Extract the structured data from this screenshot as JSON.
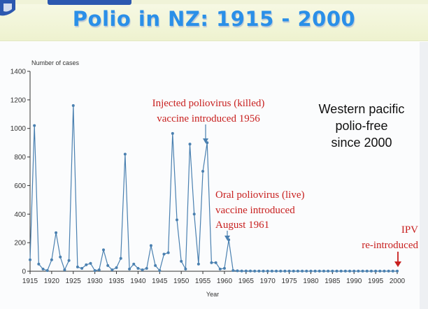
{
  "slide": {
    "title": "Polio in NZ: 1915 - 2000",
    "colors": {
      "title": "#2a8fe8",
      "line": "#4a80b0",
      "annotation_red": "#c8201f",
      "annotation_black": "#111111"
    }
  },
  "chart_data": {
    "type": "line",
    "title": "Polio in NZ: 1915 - 2000",
    "xlabel": "Year",
    "ylabel": "Number of cases",
    "xlim": [
      1915,
      2000
    ],
    "ylim": [
      0,
      1400
    ],
    "x_ticks": [
      "1915",
      "1920",
      "1925",
      "1930",
      "1935",
      "1940",
      "1945",
      "1950",
      "1955",
      "1960",
      "1965",
      "1970",
      "1975",
      "1980",
      "1985",
      "1990",
      "1995",
      "2000"
    ],
    "y_ticks": [
      "0",
      "200",
      "400",
      "600",
      "800",
      "1000",
      "1200",
      "1400"
    ],
    "grid": false,
    "series": [
      {
        "x": [
          1915,
          1916,
          1917,
          1918,
          1919,
          1920,
          1921,
          1922,
          1923,
          1924,
          1925,
          1926,
          1927,
          1928,
          1929,
          1930,
          1931,
          1932,
          1933,
          1934,
          1935,
          1936,
          1937,
          1938,
          1939,
          1940,
          1941,
          1942,
          1943,
          1944,
          1945,
          1946,
          1947,
          1948,
          1949,
          1950,
          1951,
          1952,
          1953,
          1954,
          1955,
          1956,
          1957,
          1958,
          1959,
          1960,
          1961,
          1962,
          1963,
          1964,
          1965,
          1966,
          1967,
          1968,
          1969,
          1970,
          1971,
          1972,
          1973,
          1974,
          1975,
          1976,
          1977,
          1978,
          1979,
          1980,
          1981,
          1982,
          1983,
          1984,
          1985,
          1986,
          1987,
          1988,
          1989,
          1990,
          1991,
          1992,
          1993,
          1994,
          1995,
          1996,
          1997,
          1998,
          1999,
          2000
        ],
        "values": [
          80,
          1020,
          50,
          15,
          5,
          80,
          270,
          100,
          10,
          75,
          1160,
          30,
          20,
          45,
          55,
          5,
          10,
          150,
          40,
          10,
          25,
          90,
          820,
          15,
          50,
          20,
          10,
          20,
          180,
          40,
          5,
          120,
          130,
          965,
          360,
          70,
          15,
          890,
          400,
          50,
          700,
          900,
          60,
          60,
          15,
          20,
          220,
          5,
          3,
          2,
          2,
          2,
          1,
          1,
          1,
          1,
          1,
          1,
          1,
          1,
          1,
          1,
          1,
          1,
          1,
          1,
          1,
          1,
          1,
          1,
          1,
          1,
          1,
          1,
          1,
          1,
          1,
          1,
          1,
          1,
          1,
          1,
          1,
          1,
          1,
          1
        ]
      }
    ],
    "annotations": [
      {
        "text": "Injected poliovirus (killed)",
        "color": "#c8201f"
      },
      {
        "text": "vaccine introduced 1956",
        "color": "#c8201f"
      },
      {
        "text": "Oral poliovirus (live)",
        "color": "#c8201f"
      },
      {
        "text": "vaccine introduced",
        "color": "#c8201f"
      },
      {
        "text": "August 1961",
        "color": "#c8201f"
      },
      {
        "text": "IPV",
        "color": "#c8201f"
      },
      {
        "text": "re-introduced",
        "color": "#c8201f"
      },
      {
        "text": "Western pacific",
        "color": "#111111"
      },
      {
        "text": "polio-free",
        "color": "#111111"
      },
      {
        "text": "since 2000",
        "color": "#111111"
      }
    ]
  }
}
